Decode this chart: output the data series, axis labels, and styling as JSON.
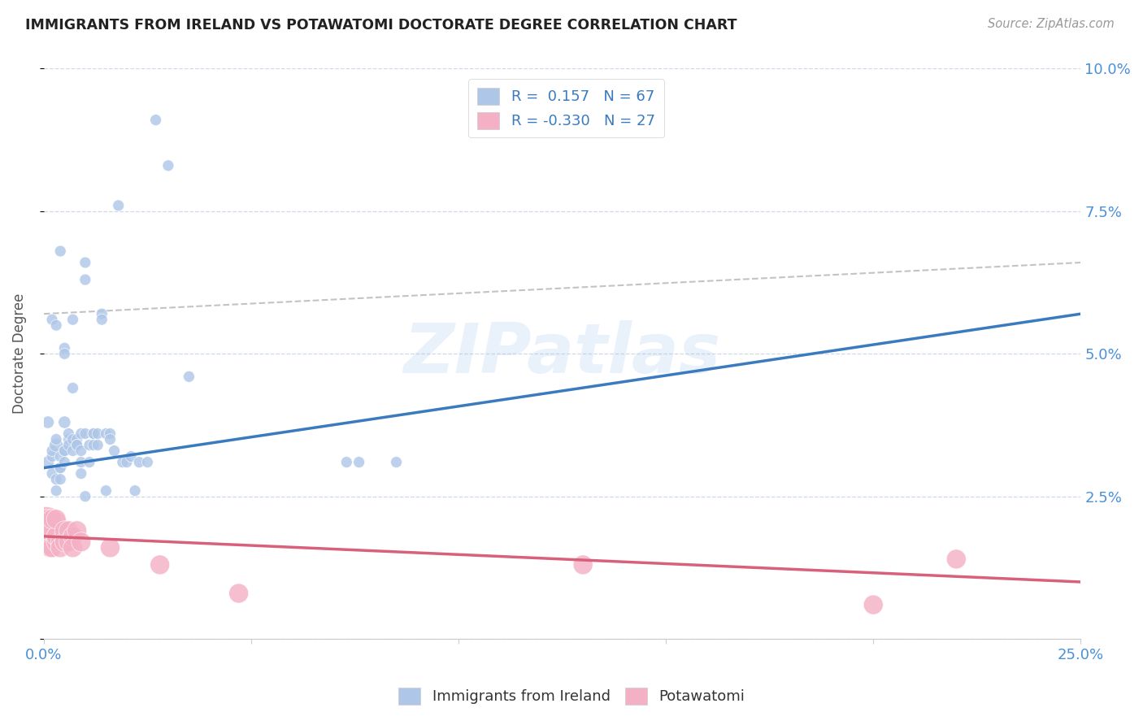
{
  "title": "IMMIGRANTS FROM IRELAND VS POTAWATOMI DOCTORATE DEGREE CORRELATION CHART",
  "source": "Source: ZipAtlas.com",
  "ylabel": "Doctorate Degree",
  "xlim": [
    0.0,
    0.25
  ],
  "ylim": [
    0.0,
    0.1
  ],
  "r_ireland": 0.157,
  "n_ireland": 67,
  "r_potawatomi": -0.33,
  "n_potawatomi": 27,
  "ireland_color": "#aec6e8",
  "ireland_line_color": "#3a7abf",
  "potawatomi_color": "#f4b0c4",
  "potawatomi_line_color": "#d9607a",
  "ci_line_color": "#aaaaaa",
  "watermark": "ZIPatlas",
  "background_color": "#ffffff",
  "grid_color": "#c8d4e8",
  "ireland_line_x0": 0.0,
  "ireland_line_y0": 0.03,
  "ireland_line_x1": 0.25,
  "ireland_line_y1": 0.057,
  "ci_line_x0": 0.0,
  "ci_line_y0": 0.057,
  "ci_line_x1": 0.25,
  "ci_line_y1": 0.066,
  "pota_line_x0": 0.0,
  "pota_line_y0": 0.018,
  "pota_line_x1": 0.25,
  "pota_line_y1": 0.01,
  "ireland_x": [
    0.001,
    0.001,
    0.002,
    0.002,
    0.002,
    0.003,
    0.003,
    0.003,
    0.003,
    0.004,
    0.004,
    0.004,
    0.004,
    0.005,
    0.005,
    0.005,
    0.005,
    0.005,
    0.006,
    0.006,
    0.006,
    0.007,
    0.007,
    0.007,
    0.007,
    0.008,
    0.008,
    0.008,
    0.009,
    0.009,
    0.009,
    0.009,
    0.01,
    0.01,
    0.01,
    0.011,
    0.011,
    0.012,
    0.012,
    0.012,
    0.013,
    0.013,
    0.014,
    0.014,
    0.015,
    0.015,
    0.016,
    0.016,
    0.017,
    0.018,
    0.019,
    0.02,
    0.021,
    0.022,
    0.023,
    0.025,
    0.027,
    0.03,
    0.035,
    0.073,
    0.076,
    0.085,
    0.002,
    0.003,
    0.004,
    0.005,
    0.01
  ],
  "ireland_y": [
    0.031,
    0.038,
    0.029,
    0.032,
    0.033,
    0.026,
    0.028,
    0.034,
    0.035,
    0.03,
    0.03,
    0.028,
    0.032,
    0.038,
    0.033,
    0.033,
    0.031,
    0.051,
    0.035,
    0.036,
    0.034,
    0.033,
    0.035,
    0.044,
    0.056,
    0.035,
    0.034,
    0.034,
    0.036,
    0.033,
    0.029,
    0.031,
    0.036,
    0.063,
    0.066,
    0.031,
    0.034,
    0.036,
    0.036,
    0.034,
    0.036,
    0.034,
    0.057,
    0.056,
    0.036,
    0.026,
    0.036,
    0.035,
    0.033,
    0.076,
    0.031,
    0.031,
    0.032,
    0.026,
    0.031,
    0.031,
    0.091,
    0.083,
    0.046,
    0.031,
    0.031,
    0.031,
    0.056,
    0.055,
    0.068,
    0.05,
    0.025
  ],
  "ireland_sizes": [
    120,
    120,
    100,
    100,
    100,
    100,
    100,
    150,
    100,
    100,
    100,
    100,
    100,
    120,
    100,
    100,
    100,
    100,
    100,
    100,
    100,
    100,
    100,
    100,
    100,
    100,
    100,
    100,
    100,
    100,
    100,
    100,
    100,
    100,
    100,
    100,
    100,
    100,
    100,
    100,
    100,
    100,
    100,
    100,
    100,
    100,
    100,
    100,
    100,
    100,
    100,
    100,
    100,
    100,
    100,
    100,
    100,
    100,
    100,
    100,
    100,
    100,
    100,
    100,
    100,
    100,
    100
  ],
  "potawatomi_x": [
    0.0003,
    0.001,
    0.001,
    0.001,
    0.0015,
    0.002,
    0.002,
    0.002,
    0.003,
    0.003,
    0.003,
    0.004,
    0.004,
    0.005,
    0.005,
    0.006,
    0.006,
    0.007,
    0.007,
    0.008,
    0.009,
    0.016,
    0.028,
    0.047,
    0.13,
    0.2,
    0.22
  ],
  "potawatomi_y": [
    0.019,
    0.017,
    0.019,
    0.021,
    0.016,
    0.016,
    0.019,
    0.021,
    0.017,
    0.018,
    0.021,
    0.017,
    0.016,
    0.019,
    0.017,
    0.019,
    0.017,
    0.018,
    0.016,
    0.019,
    0.017,
    0.016,
    0.013,
    0.008,
    0.013,
    0.006,
    0.014
  ],
  "potawatomi_sizes": [
    1800,
    300,
    300,
    300,
    300,
    300,
    300,
    300,
    300,
    300,
    300,
    300,
    300,
    300,
    300,
    300,
    300,
    300,
    300,
    300,
    300,
    300,
    300,
    300,
    300,
    300,
    300
  ]
}
